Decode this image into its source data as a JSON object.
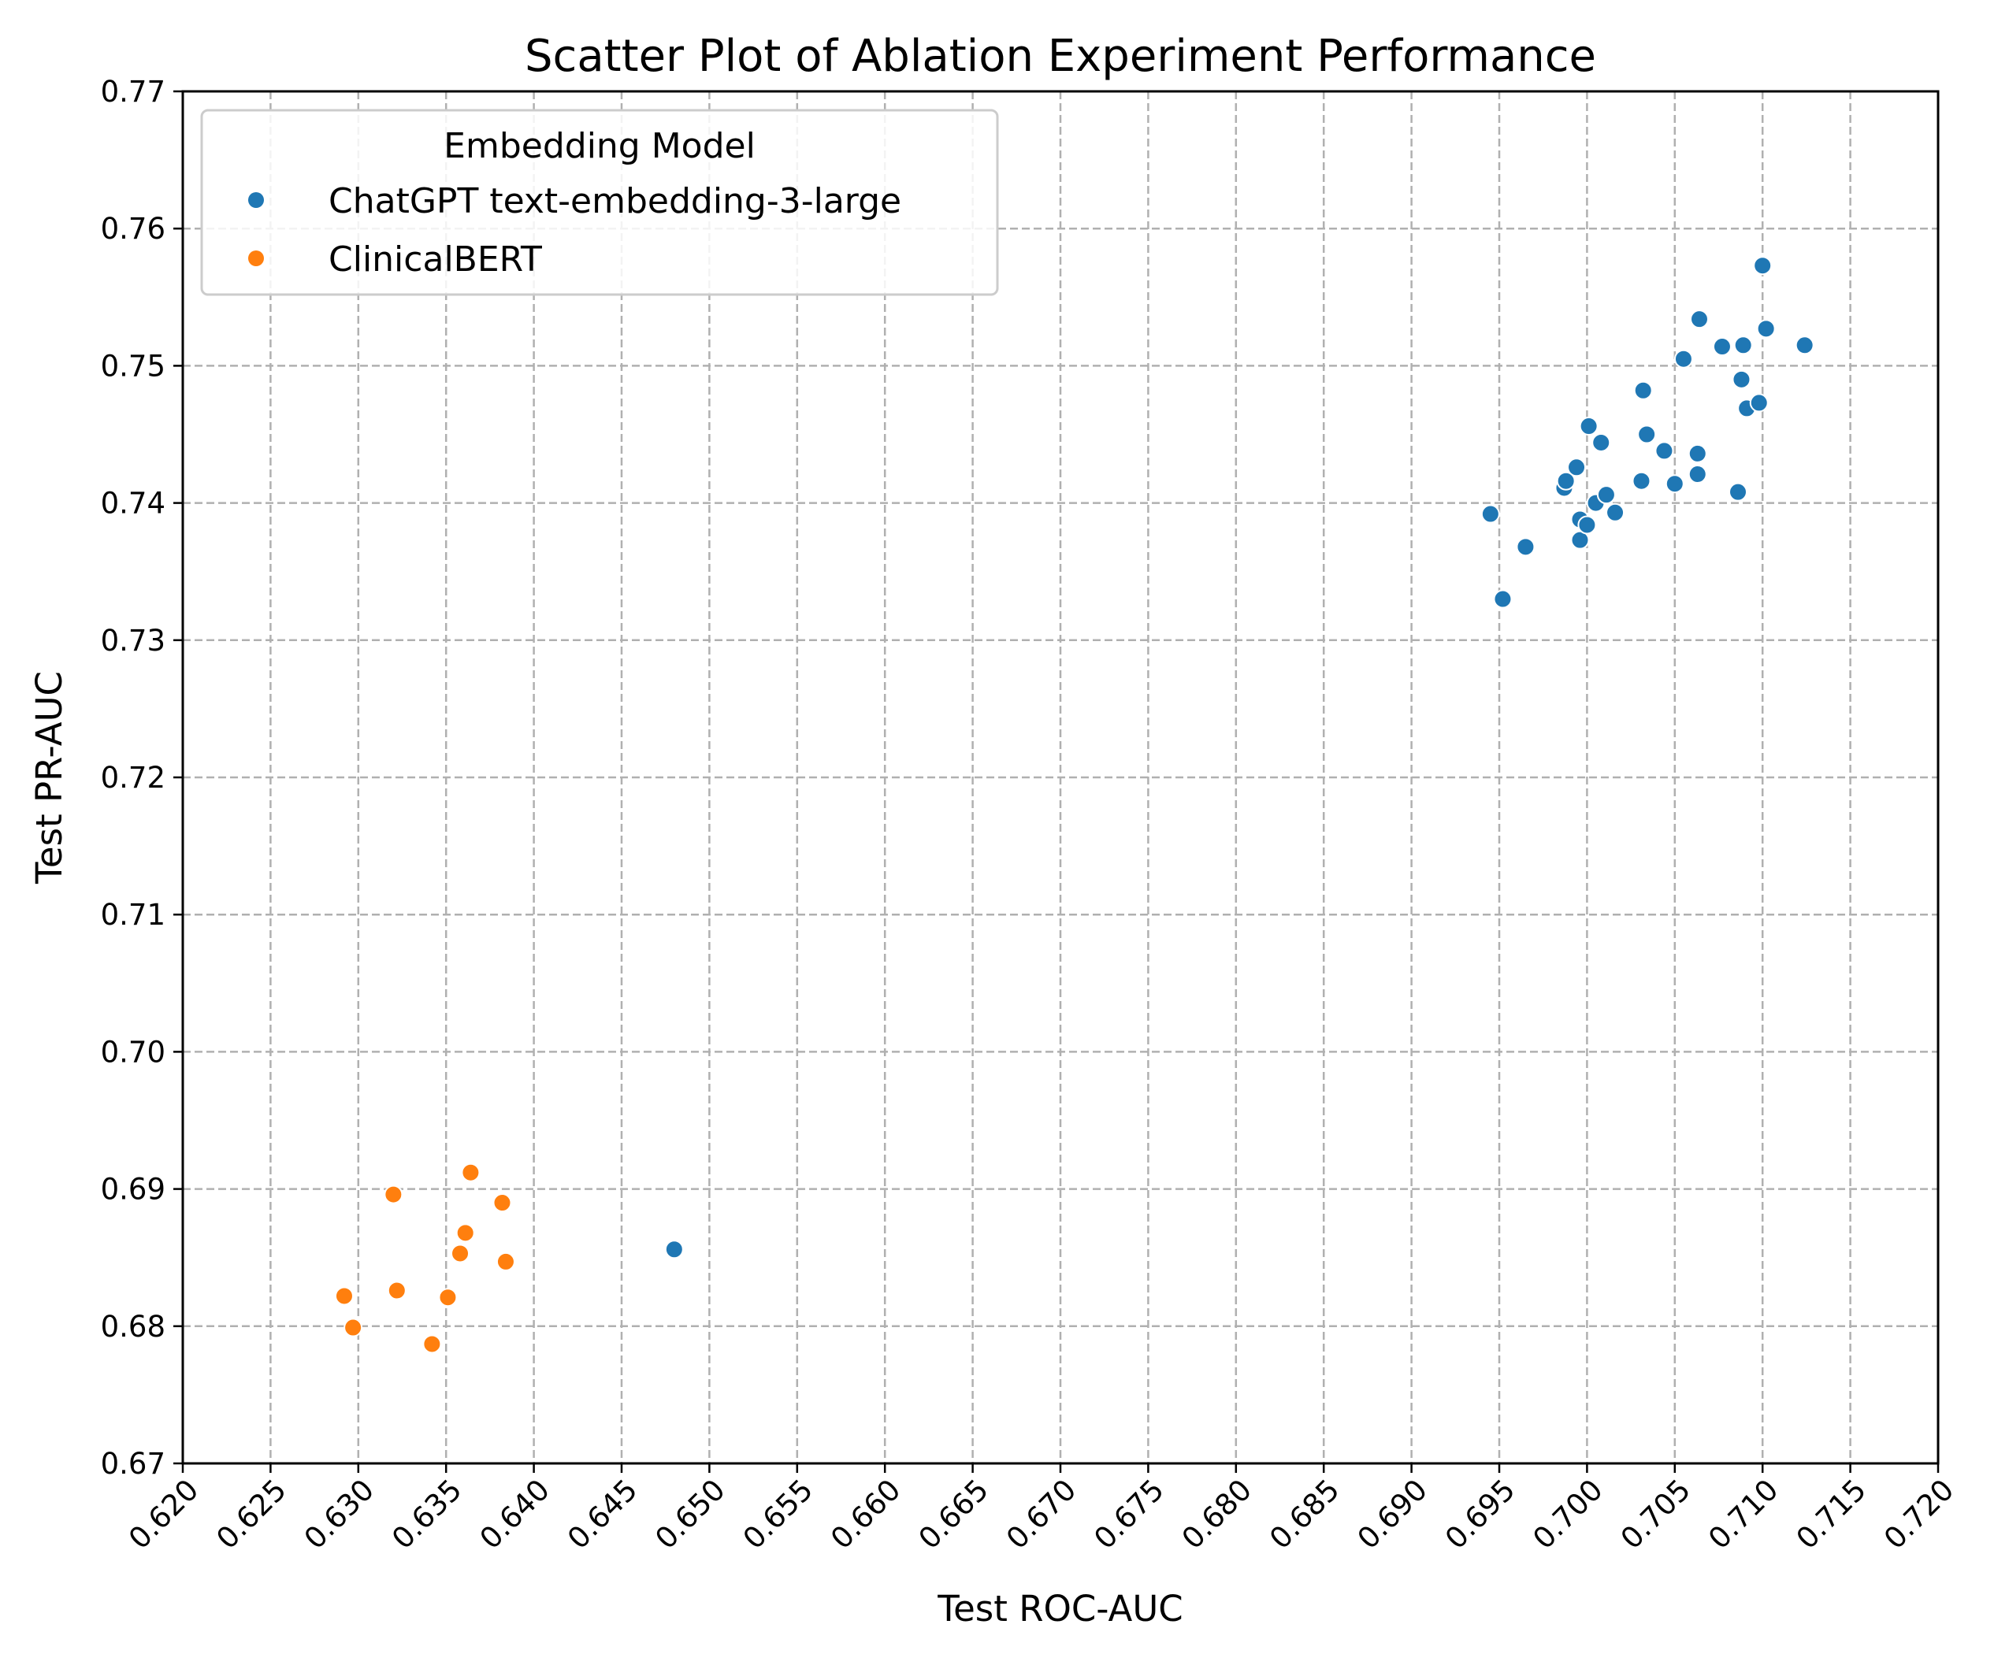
{
  "chart_data": {
    "type": "scatter",
    "title": "Scatter Plot of Ablation Experiment Performance",
    "xlabel": "Test ROC-AUC",
    "ylabel": "Test PR-AUC",
    "xlim": [
      0.62,
      0.72
    ],
    "ylim": [
      0.67,
      0.77
    ],
    "xticks": [
      "0.620",
      "0.625",
      "0.630",
      "0.635",
      "0.640",
      "0.645",
      "0.650",
      "0.655",
      "0.660",
      "0.665",
      "0.670",
      "0.675",
      "0.680",
      "0.685",
      "0.690",
      "0.695",
      "0.700",
      "0.705",
      "0.710",
      "0.715",
      "0.720"
    ],
    "yticks": [
      "0.67",
      "0.68",
      "0.69",
      "0.70",
      "0.71",
      "0.72",
      "0.73",
      "0.74",
      "0.75",
      "0.76",
      "0.77"
    ],
    "grid": true,
    "legend": {
      "title": "Embedding Model",
      "placement": "top-left"
    },
    "series": [
      {
        "name": "ChatGPT text-embedding-3-large",
        "color": "#1f77b4",
        "points": [
          [
            0.6945,
            0.7392
          ],
          [
            0.6952,
            0.733
          ],
          [
            0.6965,
            0.7368
          ],
          [
            0.6987,
            0.7411
          ],
          [
            0.6988,
            0.7416
          ],
          [
            0.6994,
            0.7426
          ],
          [
            0.6996,
            0.7388
          ],
          [
            0.6996,
            0.7373
          ],
          [
            0.7,
            0.7384
          ],
          [
            0.7001,
            0.7456
          ],
          [
            0.7005,
            0.74
          ],
          [
            0.7008,
            0.7444
          ],
          [
            0.7011,
            0.7406
          ],
          [
            0.7016,
            0.7393
          ],
          [
            0.7031,
            0.7416
          ],
          [
            0.7032,
            0.7482
          ],
          [
            0.7034,
            0.745
          ],
          [
            0.7044,
            0.7438
          ],
          [
            0.705,
            0.7414
          ],
          [
            0.7055,
            0.7505
          ],
          [
            0.7063,
            0.7421
          ],
          [
            0.7063,
            0.7436
          ],
          [
            0.7064,
            0.7534
          ],
          [
            0.7077,
            0.7514
          ],
          [
            0.7086,
            0.7408
          ],
          [
            0.7088,
            0.749
          ],
          [
            0.7089,
            0.7515
          ],
          [
            0.7091,
            0.7469
          ],
          [
            0.7098,
            0.7473
          ],
          [
            0.71,
            0.7573
          ],
          [
            0.7102,
            0.7527
          ],
          [
            0.7124,
            0.7515
          ],
          [
            0.648,
            0.6856
          ]
        ]
      },
      {
        "name": "ClinicalBERT",
        "color": "#ff7f0e",
        "points": [
          [
            0.6292,
            0.6822
          ],
          [
            0.6297,
            0.6799
          ],
          [
            0.632,
            0.6896
          ],
          [
            0.6322,
            0.6826
          ],
          [
            0.6342,
            0.6787
          ],
          [
            0.6351,
            0.6821
          ],
          [
            0.6358,
            0.6853
          ],
          [
            0.6361,
            0.6868
          ],
          [
            0.6364,
            0.6912
          ],
          [
            0.6382,
            0.689
          ],
          [
            0.6384,
            0.6847
          ]
        ]
      }
    ]
  }
}
